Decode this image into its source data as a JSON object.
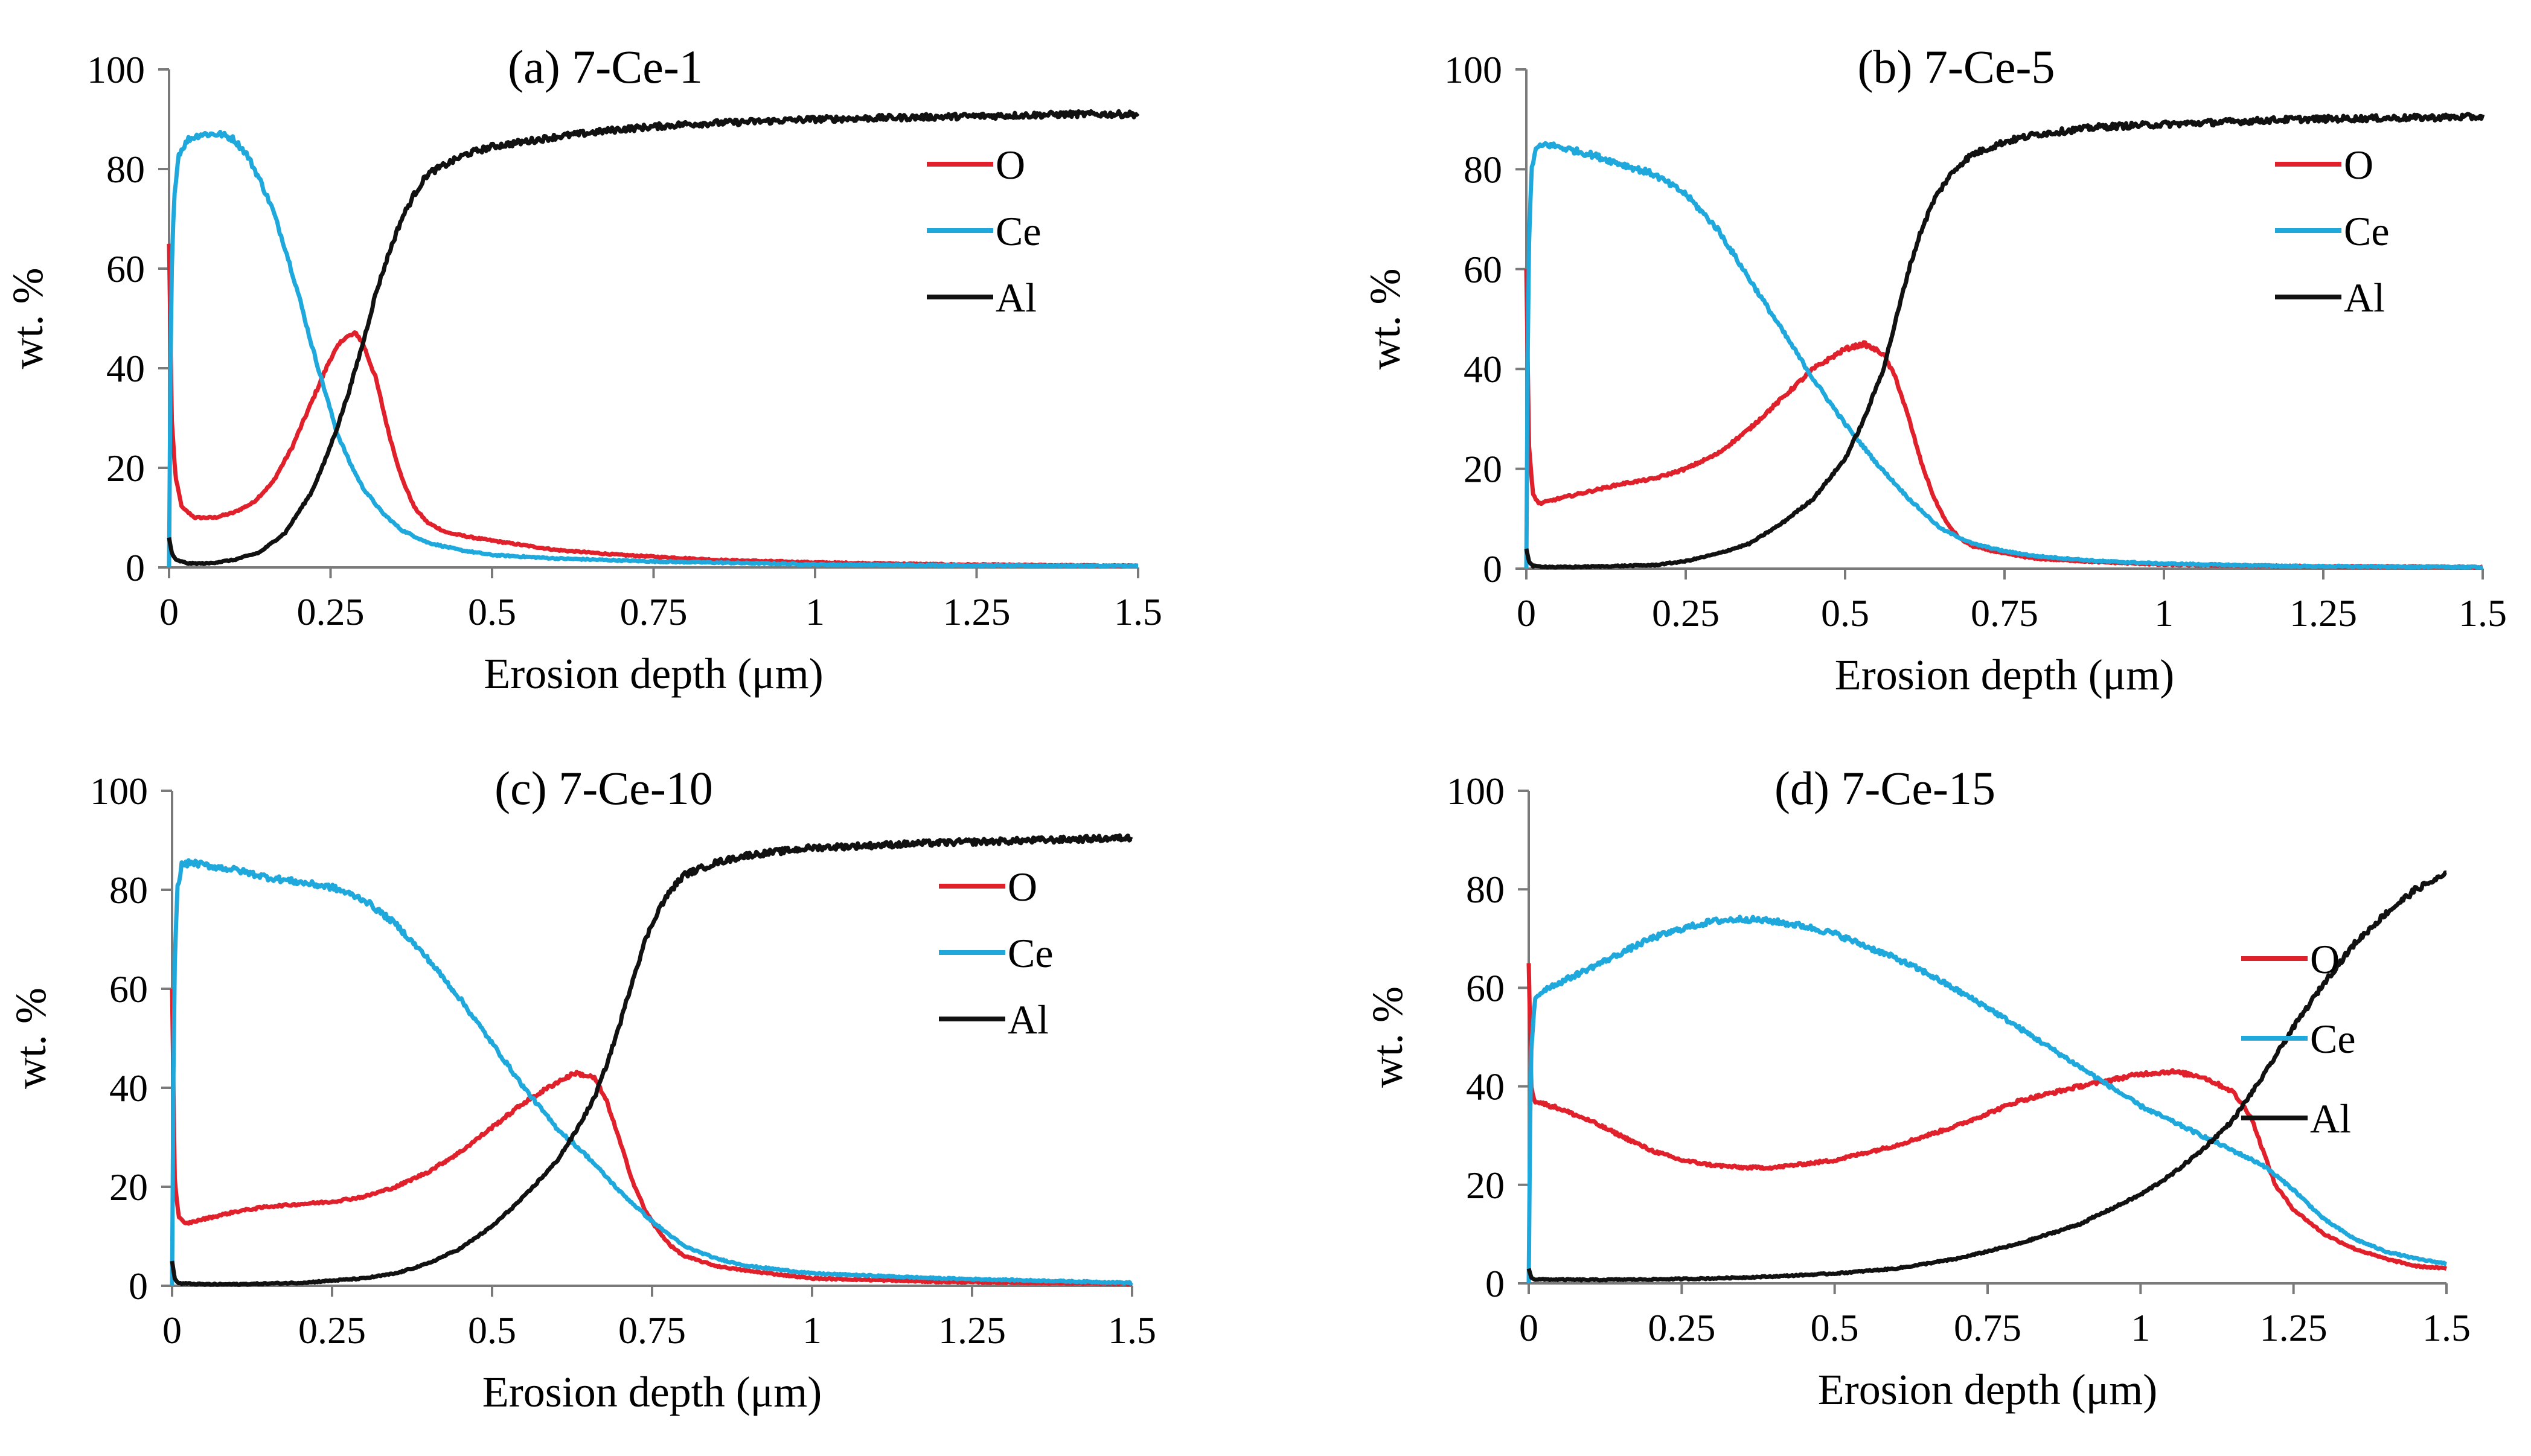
{
  "chart_data": [
    {
      "type": "line",
      "title": "(a) 7-Ce-1",
      "xlabel": "Erosion depth (μm)",
      "ylabel": "wt. %",
      "xlim": [
        0,
        1.5
      ],
      "ylim": [
        0,
        100
      ],
      "xticks": [
        0,
        0.25,
        0.5,
        0.75,
        1,
        1.25,
        1.5
      ],
      "xtick_labels": [
        "0",
        "0.25",
        "0.5",
        "0.75",
        "1",
        "1.25",
        "1.5"
      ],
      "yticks": [
        0,
        20,
        40,
        60,
        80,
        100
      ],
      "ytick_labels": [
        "0",
        "20",
        "40",
        "60",
        "80",
        "100"
      ],
      "legend_position": "upper-right",
      "series": [
        {
          "name": "O",
          "color": "#e0202a",
          "x": [
            0,
            0.004,
            0.01,
            0.02,
            0.04,
            0.07,
            0.1,
            0.13,
            0.16,
            0.19,
            0.22,
            0.25,
            0.27,
            0.29,
            0.3,
            0.32,
            0.34,
            0.36,
            0.38,
            0.4,
            0.43,
            0.47,
            0.52,
            0.6,
            0.7,
            0.85,
            1.0,
            1.2,
            1.5
          ],
          "y": [
            65,
            30,
            18,
            12,
            10,
            10,
            11,
            13,
            17,
            24,
            33,
            42,
            46,
            47,
            45,
            38,
            27,
            18,
            12,
            9,
            7,
            6,
            5,
            3.5,
            2.5,
            1.5,
            1,
            0.6,
            0.3
          ]
        },
        {
          "name": "Ce",
          "color": "#1ea8dc",
          "x": [
            0,
            0.003,
            0.008,
            0.015,
            0.03,
            0.05,
            0.08,
            0.1,
            0.12,
            0.14,
            0.16,
            0.18,
            0.2,
            0.22,
            0.24,
            0.26,
            0.28,
            0.3,
            0.33,
            0.36,
            0.4,
            0.45,
            0.5,
            0.6,
            0.75,
            1.0,
            1.25,
            1.5
          ],
          "y": [
            0,
            55,
            75,
            83,
            86,
            87,
            87,
            86,
            83,
            78,
            72,
            64,
            55,
            45,
            36,
            27,
            21,
            16,
            11,
            7.5,
            5,
            3.5,
            2.5,
            1.8,
            1.2,
            0.6,
            0.4,
            0.3
          ]
        },
        {
          "name": "Al",
          "color": "#111111",
          "x": [
            0,
            0.004,
            0.01,
            0.03,
            0.06,
            0.1,
            0.14,
            0.18,
            0.2,
            0.22,
            0.24,
            0.26,
            0.28,
            0.3,
            0.32,
            0.34,
            0.36,
            0.38,
            0.4,
            0.43,
            0.46,
            0.5,
            0.55,
            0.6,
            0.7,
            0.8,
            0.9,
            1.0,
            1.2,
            1.4,
            1.5
          ],
          "y": [
            6,
            3,
            1.5,
            0.8,
            0.8,
            1.5,
            3,
            7,
            11,
            15,
            21,
            28,
            36,
            45,
            55,
            63,
            70,
            75,
            79,
            81,
            83,
            84.5,
            85.5,
            86.5,
            88,
            89,
            89.5,
            90,
            90.5,
            91,
            91
          ]
        }
      ]
    },
    {
      "type": "line",
      "title": "(b) 7-Ce-5",
      "xlabel": "Erosion depth (μm)",
      "ylabel": "wt. %",
      "xlim": [
        0,
        1.5
      ],
      "ylim": [
        0,
        100
      ],
      "xticks": [
        0,
        0.25,
        0.5,
        0.75,
        1,
        1.25,
        1.5
      ],
      "xtick_labels": [
        "0",
        "0.25",
        "0.5",
        "0.75",
        "1",
        "1.25",
        "1.5"
      ],
      "yticks": [
        0,
        20,
        40,
        60,
        80,
        100
      ],
      "ytick_labels": [
        "0",
        "20",
        "40",
        "60",
        "80",
        "100"
      ],
      "legend_position": "upper-right",
      "series": [
        {
          "name": "O",
          "color": "#e0202a",
          "x": [
            0,
            0.004,
            0.01,
            0.02,
            0.05,
            0.1,
            0.15,
            0.2,
            0.25,
            0.3,
            0.35,
            0.4,
            0.45,
            0.5,
            0.53,
            0.56,
            0.58,
            0.6,
            0.62,
            0.64,
            0.66,
            0.68,
            0.7,
            0.75,
            0.8,
            0.9,
            1.0,
            1.2,
            1.5
          ],
          "y": [
            60,
            25,
            15,
            13,
            14,
            15.5,
            17,
            18,
            20,
            23,
            28,
            34,
            40,
            44,
            45,
            43,
            38,
            30,
            21,
            14,
            9,
            6,
            4.5,
            3,
            2,
            1.3,
            0.8,
            0.5,
            0.3
          ]
        },
        {
          "name": "Ce",
          "color": "#1ea8dc",
          "x": [
            0,
            0.003,
            0.008,
            0.015,
            0.03,
            0.05,
            0.1,
            0.15,
            0.2,
            0.25,
            0.3,
            0.35,
            0.4,
            0.45,
            0.5,
            0.55,
            0.6,
            0.65,
            0.7,
            0.75,
            0.8,
            0.9,
            1.0,
            1.2,
            1.5
          ],
          "y": [
            0,
            60,
            80,
            84,
            85,
            84.5,
            83,
            81,
            79,
            75,
            68,
            58,
            48,
            38,
            29,
            21,
            14,
            8,
            5,
            3.5,
            2.5,
            1.5,
            1,
            0.5,
            0.3
          ]
        },
        {
          "name": "Al",
          "color": "#111111",
          "x": [
            0,
            0.004,
            0.01,
            0.05,
            0.1,
            0.2,
            0.25,
            0.3,
            0.35,
            0.4,
            0.45,
            0.5,
            0.53,
            0.56,
            0.58,
            0.6,
            0.62,
            0.64,
            0.66,
            0.68,
            0.7,
            0.75,
            0.8,
            0.9,
            1.0,
            1.2,
            1.5
          ],
          "y": [
            4,
            1.5,
            0.5,
            0.3,
            0.4,
            0.7,
            1.5,
            3,
            5,
            9,
            14,
            22,
            30,
            40,
            50,
            60,
            68,
            74,
            78,
            81,
            83,
            85.5,
            87,
            88.5,
            89,
            90,
            90.5
          ]
        }
      ]
    },
    {
      "type": "line",
      "title": "(c) 7-Ce-10",
      "xlabel": "Erosion depth (μm)",
      "ylabel": "wt. %",
      "xlim": [
        0,
        1.5
      ],
      "ylim": [
        0,
        100
      ],
      "xticks": [
        0,
        0.25,
        0.5,
        0.75,
        1,
        1.25,
        1.5
      ],
      "xtick_labels": [
        "0",
        "0.25",
        "0.5",
        "0.75",
        "1",
        "1.25",
        "1.5"
      ],
      "yticks": [
        0,
        20,
        40,
        60,
        80,
        100
      ],
      "ytick_labels": [
        "0",
        "20",
        "40",
        "60",
        "80",
        "100"
      ],
      "legend_position": "upper-right",
      "series": [
        {
          "name": "O",
          "color": "#e0202a",
          "x": [
            0,
            0.004,
            0.01,
            0.02,
            0.05,
            0.1,
            0.15,
            0.2,
            0.25,
            0.3,
            0.35,
            0.4,
            0.45,
            0.5,
            0.55,
            0.6,
            0.63,
            0.66,
            0.68,
            0.7,
            0.72,
            0.74,
            0.76,
            0.78,
            0.8,
            0.85,
            0.9,
            1.0,
            1.2,
            1.5
          ],
          "y": [
            60,
            22,
            14,
            12.5,
            13.5,
            15,
            16,
            16.5,
            17,
            18,
            20,
            23,
            27,
            32,
            37,
            41,
            43,
            42,
            37,
            29,
            21,
            15,
            11,
            8,
            6,
            4,
            3,
            1.5,
            0.8,
            0.4
          ]
        },
        {
          "name": "Ce",
          "color": "#1ea8dc",
          "x": [
            0,
            0.003,
            0.008,
            0.015,
            0.03,
            0.05,
            0.1,
            0.15,
            0.2,
            0.25,
            0.3,
            0.35,
            0.4,
            0.45,
            0.5,
            0.55,
            0.6,
            0.65,
            0.7,
            0.75,
            0.8,
            0.85,
            0.9,
            1.0,
            1.2,
            1.5
          ],
          "y": [
            0,
            60,
            80,
            85,
            85.5,
            85,
            84,
            82.5,
            81.5,
            80.5,
            78,
            73,
            66,
            58,
            49,
            40,
            32,
            26,
            19,
            13,
            8,
            5.5,
            4,
            2.5,
            1.5,
            0.6
          ]
        },
        {
          "name": "Al",
          "color": "#111111",
          "x": [
            0,
            0.004,
            0.01,
            0.05,
            0.1,
            0.2,
            0.3,
            0.35,
            0.4,
            0.45,
            0.5,
            0.55,
            0.6,
            0.63,
            0.66,
            0.68,
            0.7,
            0.72,
            0.74,
            0.76,
            0.78,
            0.8,
            0.85,
            0.9,
            1.0,
            1.2,
            1.5
          ],
          "y": [
            5,
            1.5,
            0.5,
            0.3,
            0.3,
            0.6,
            1.5,
            2.5,
            4.5,
            7.5,
            12,
            18,
            25,
            31,
            38,
            45,
            53,
            62,
            70,
            76,
            80,
            83,
            85.5,
            87,
            88.5,
            89.5,
            90.5
          ]
        }
      ]
    },
    {
      "type": "line",
      "title": "(d) 7-Ce-15",
      "xlabel": "Erosion depth (μm)",
      "ylabel": "wt. %",
      "xlim": [
        0,
        1.5
      ],
      "ylim": [
        0,
        100
      ],
      "xticks": [
        0,
        0.25,
        0.5,
        0.75,
        1,
        1.25,
        1.5
      ],
      "xtick_labels": [
        "0",
        "0.25",
        "0.5",
        "0.75",
        "1",
        "1.25",
        "1.5"
      ],
      "yticks": [
        0,
        20,
        40,
        60,
        80,
        100
      ],
      "ytick_labels": [
        "0",
        "20",
        "40",
        "60",
        "80",
        "100"
      ],
      "legend_position": "right",
      "series": [
        {
          "name": "O",
          "color": "#e0202a",
          "x": [
            0,
            0.004,
            0.01,
            0.05,
            0.1,
            0.15,
            0.2,
            0.25,
            0.3,
            0.35,
            0.4,
            0.5,
            0.6,
            0.7,
            0.8,
            0.9,
            1.0,
            1.05,
            1.1,
            1.15,
            1.18,
            1.2,
            1.22,
            1.25,
            1.3,
            1.35,
            1.4,
            1.45,
            1.5
          ],
          "y": [
            65,
            40,
            37,
            35.5,
            33,
            30,
            27,
            25,
            24,
            23.5,
            23.5,
            25,
            28,
            32,
            37,
            40,
            42.5,
            43,
            42,
            39,
            34,
            27,
            20,
            15,
            10,
            7,
            5,
            3.5,
            3
          ]
        },
        {
          "name": "Ce",
          "color": "#1ea8dc",
          "x": [
            0,
            0.003,
            0.01,
            0.03,
            0.05,
            0.1,
            0.15,
            0.2,
            0.25,
            0.3,
            0.35,
            0.4,
            0.45,
            0.5,
            0.55,
            0.6,
            0.65,
            0.7,
            0.75,
            0.8,
            0.85,
            0.9,
            0.95,
            1.0,
            1.05,
            1.1,
            1.15,
            1.2,
            1.25,
            1.3,
            1.35,
            1.4,
            1.45,
            1.5
          ],
          "y": [
            0,
            45,
            58,
            60,
            61,
            64,
            67,
            70,
            72,
            73.5,
            74,
            73.5,
            72.5,
            71,
            68.5,
            66,
            63,
            59.5,
            56,
            52,
            48,
            44,
            40,
            36,
            33,
            30,
            27,
            24,
            19,
            13,
            9,
            6.5,
            5,
            4
          ]
        },
        {
          "name": "Al",
          "color": "#111111",
          "x": [
            0,
            0.004,
            0.01,
            0.1,
            0.2,
            0.3,
            0.4,
            0.5,
            0.6,
            0.7,
            0.8,
            0.9,
            1.0,
            1.05,
            1.1,
            1.15,
            1.2,
            1.25,
            1.3,
            1.35,
            1.4,
            1.45,
            1.5
          ],
          "y": [
            3,
            1.2,
            0.8,
            0.7,
            0.8,
            1,
            1.4,
            2,
            3,
            5,
            8,
            12,
            18,
            22,
            27,
            33,
            42,
            52,
            61,
            69,
            75,
            80,
            83
          ]
        }
      ]
    }
  ]
}
